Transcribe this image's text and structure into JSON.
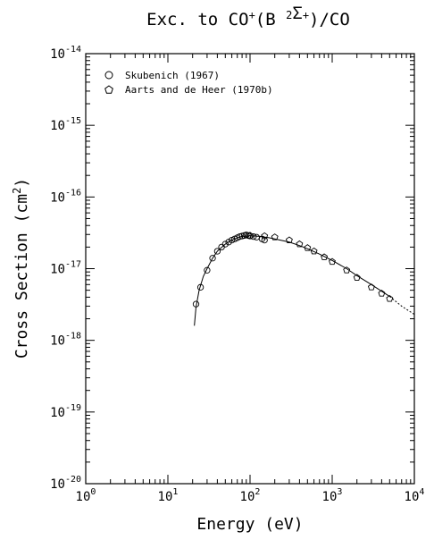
{
  "chart_data": {
    "type": "scatter",
    "title": "Exc. to CO⁺(B ²Σ⁺)/CO",
    "title_parts": {
      "prefix": "Exc. to CO",
      "sup1": "+",
      "mid": "(B ",
      "sup2": "2",
      "sigma": "Σ",
      "sup3": "+",
      "suffix": ")/CO"
    },
    "xlabel": "Energy (eV)",
    "ylabel": "Cross Section (cm²)",
    "ylabel_parts": {
      "main": "Cross Section (cm",
      "sup": "2",
      "close": ")"
    },
    "x_scale": "log",
    "y_scale": "log",
    "xlim": [
      1,
      10000
    ],
    "ylim": [
      1e-20,
      1e-14
    ],
    "x_ticks": [
      {
        "base": "10",
        "exp": "0",
        "value": 1
      },
      {
        "base": "10",
        "exp": "1",
        "value": 10
      },
      {
        "base": "10",
        "exp": "2",
        "value": 100
      },
      {
        "base": "10",
        "exp": "3",
        "value": 1000
      },
      {
        "base": "10",
        "exp": "4",
        "value": 10000
      }
    ],
    "y_ticks": [
      {
        "base": "10",
        "exp": "-20",
        "value": 1e-20
      },
      {
        "base": "10",
        "exp": "-19",
        "value": 1e-19
      },
      {
        "base": "10",
        "exp": "-18",
        "value": 1e-18
      },
      {
        "base": "10",
        "exp": "-17",
        "value": 1e-17
      },
      {
        "base": "10",
        "exp": "-16",
        "value": 1e-16
      },
      {
        "base": "10",
        "exp": "-15",
        "value": 1e-15
      },
      {
        "base": "10",
        "exp": "-14",
        "value": 1e-14
      }
    ],
    "grid": false,
    "legend_position": "top-left",
    "series": [
      {
        "name": "Skubenich (1967)",
        "marker": "circle",
        "points": [
          [
            22,
            3.2e-18
          ],
          [
            25,
            5.5e-18
          ],
          [
            30,
            9.5e-18
          ],
          [
            35,
            1.4e-17
          ],
          [
            40,
            1.75e-17
          ],
          [
            45,
            2e-17
          ],
          [
            50,
            2.2e-17
          ],
          [
            55,
            2.35e-17
          ],
          [
            60,
            2.5e-17
          ],
          [
            65,
            2.6e-17
          ],
          [
            70,
            2.7e-17
          ],
          [
            75,
            2.8e-17
          ],
          [
            80,
            2.85e-17
          ],
          [
            85,
            2.9e-17
          ],
          [
            90,
            2.95e-17
          ],
          [
            95,
            2.9e-17
          ],
          [
            100,
            2.85e-17
          ],
          [
            110,
            2.8e-17
          ],
          [
            120,
            2.75e-17
          ],
          [
            140,
            2.6e-17
          ],
          [
            150,
            2.5e-17
          ]
        ]
      },
      {
        "name": "Aarts and de Heer (1970b)",
        "marker": "pentagon",
        "points": [
          [
            100,
            2.9e-17
          ],
          [
            150,
            2.85e-17
          ],
          [
            200,
            2.75e-17
          ],
          [
            300,
            2.5e-17
          ],
          [
            400,
            2.2e-17
          ],
          [
            500,
            1.95e-17
          ],
          [
            600,
            1.75e-17
          ],
          [
            800,
            1.45e-17
          ],
          [
            1000,
            1.25e-17
          ],
          [
            1500,
            9.5e-18
          ],
          [
            2000,
            7.5e-18
          ],
          [
            3000,
            5.5e-18
          ],
          [
            4000,
            4.5e-18
          ],
          [
            5000,
            3.8e-18
          ]
        ]
      }
    ],
    "fit_curve": [
      [
        21,
        1.6e-18
      ],
      [
        22,
        2.9e-18
      ],
      [
        24,
        5e-18
      ],
      [
        27,
        7.8e-18
      ],
      [
        30,
        1e-17
      ],
      [
        35,
        1.4e-17
      ],
      [
        40,
        1.75e-17
      ],
      [
        50,
        2.2e-17
      ],
      [
        60,
        2.5e-17
      ],
      [
        70,
        2.7e-17
      ],
      [
        80,
        2.82e-17
      ],
      [
        100,
        2.88e-17
      ],
      [
        130,
        2.82e-17
      ],
      [
        170,
        2.7e-17
      ],
      [
        200,
        2.6e-17
      ],
      [
        300,
        2.35e-17
      ],
      [
        400,
        2.1e-17
      ],
      [
        500,
        1.9e-17
      ],
      [
        700,
        1.6e-17
      ],
      [
        1000,
        1.3e-17
      ],
      [
        1500,
        1e-17
      ],
      [
        2000,
        8e-18
      ],
      [
        3000,
        6e-18
      ],
      [
        5000,
        4.1e-18
      ],
      [
        7000,
        3e-18
      ],
      [
        10000,
        2.3e-18
      ]
    ],
    "fit_curve_extension_style": "dashed"
  }
}
